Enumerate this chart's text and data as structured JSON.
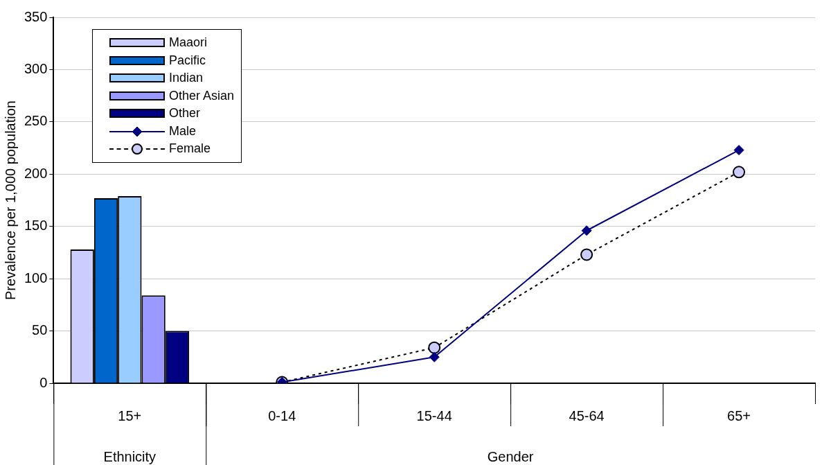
{
  "chart_data": {
    "type": "bar",
    "ylabel": "Prevalence per 1,000 population",
    "categories": [
      "15+",
      "0-14",
      "15-44",
      "45-64",
      "65+"
    ],
    "series": [
      {
        "name": "Maaori",
        "color": "#ccccff",
        "values": [
          128,
          null,
          null,
          null,
          null
        ]
      },
      {
        "name": "Pacific",
        "color": "#0066cc",
        "values": [
          177,
          null,
          null,
          null,
          null
        ]
      },
      {
        "name": "Indian",
        "color": "#99ccff",
        "values": [
          179,
          null,
          null,
          null,
          null
        ]
      },
      {
        "name": "Other Asian",
        "color": "#9999ff",
        "values": [
          84,
          null,
          null,
          null,
          null
        ]
      },
      {
        "name": "Other",
        "color": "#000080",
        "values": [
          50,
          null,
          null,
          null,
          null
        ]
      },
      {
        "name": "Male",
        "type": "line",
        "color": "#000080",
        "marker": "diamond",
        "line_style": "solid",
        "values": [
          null,
          1,
          25,
          146,
          223
        ]
      },
      {
        "name": "Female",
        "type": "line",
        "color": "#ccccff",
        "marker": "circle",
        "line_style": "dotted",
        "values": [
          null,
          1,
          34,
          123,
          202
        ]
      }
    ],
    "annotations": [
      "Ethnicity",
      "Gender"
    ],
    "ylim": [
      0,
      350
    ],
    "yticks": [
      0,
      50,
      100,
      150,
      200,
      250,
      300,
      350
    ],
    "grid": "y",
    "legend": "top left"
  }
}
